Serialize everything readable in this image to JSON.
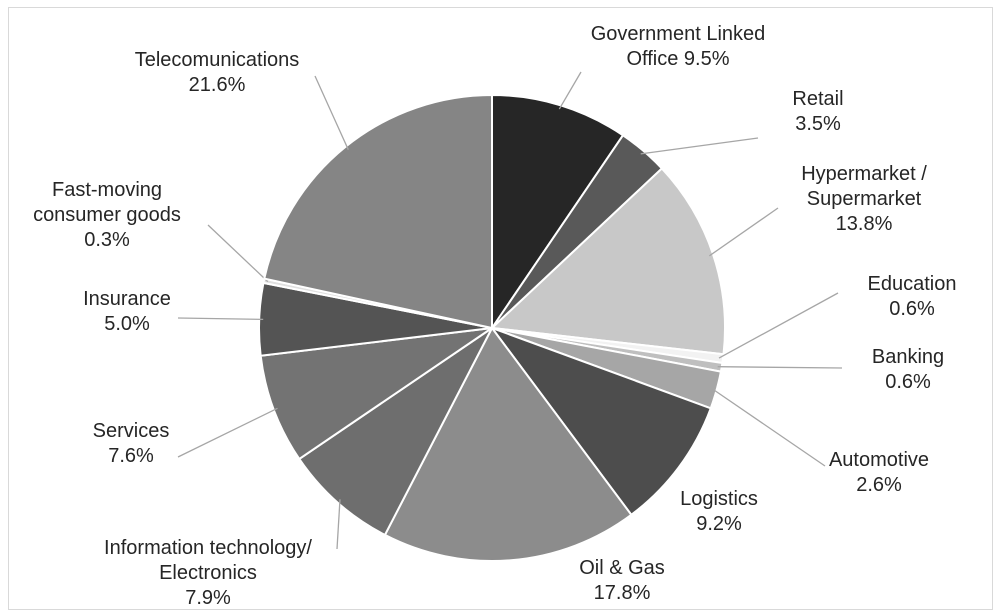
{
  "chart_data": {
    "type": "pie",
    "title": "",
    "legend": "none",
    "slices": [
      {
        "label_lines": [
          "Government Linked",
          "Office 9.5%"
        ],
        "category": "Government Linked Office",
        "value": 9.5,
        "color": "#262626"
      },
      {
        "label_lines": [
          "Retail",
          "3.5%"
        ],
        "category": "Retail",
        "value": 3.5,
        "color": "#595959"
      },
      {
        "label_lines": [
          "Hypermarket /",
          "Supermarket",
          "13.8%"
        ],
        "category": "Hypermarket / Supermarket",
        "value": 13.8,
        "color": "#c8c8c8"
      },
      {
        "label_lines": [
          "Education",
          "0.6%"
        ],
        "category": "Education",
        "value": 0.6,
        "color": "#f2f2f2"
      },
      {
        "label_lines": [
          "Banking",
          "0.6%"
        ],
        "category": "Banking",
        "value": 0.6,
        "color": "#bfbfbf"
      },
      {
        "label_lines": [
          "Automotive",
          "2.6%"
        ],
        "category": "Automotive",
        "value": 2.6,
        "color": "#a6a6a6"
      },
      {
        "label_lines": [
          "Logistics",
          "9.2%"
        ],
        "category": "Logistics",
        "value": 9.2,
        "color": "#4d4d4d"
      },
      {
        "label_lines": [
          "Oil & Gas",
          "17.8%"
        ],
        "category": "Oil & Gas",
        "value": 17.8,
        "color": "#8c8c8c"
      },
      {
        "label_lines": [
          "Information technology/",
          "Electronics",
          "7.9%"
        ],
        "category": "Information technology/ Electronics",
        "value": 7.9,
        "color": "#6e6e6e"
      },
      {
        "label_lines": [
          "Services",
          "7.6%"
        ],
        "category": "Services",
        "value": 7.6,
        "color": "#737373"
      },
      {
        "label_lines": [
          "Insurance",
          "5.0%"
        ],
        "category": "Insurance",
        "value": 5.0,
        "color": "#545454"
      },
      {
        "label_lines": [
          "Fast-moving",
          "consumer goods",
          "0.3%"
        ],
        "category": "Fast-moving consumer goods",
        "value": 0.3,
        "color": "#e0e0e0"
      },
      {
        "label_lines": [
          "Telecomunications",
          "21.6%"
        ],
        "category": "Telecomunications",
        "value": 21.6,
        "color": "#858585"
      }
    ]
  }
}
